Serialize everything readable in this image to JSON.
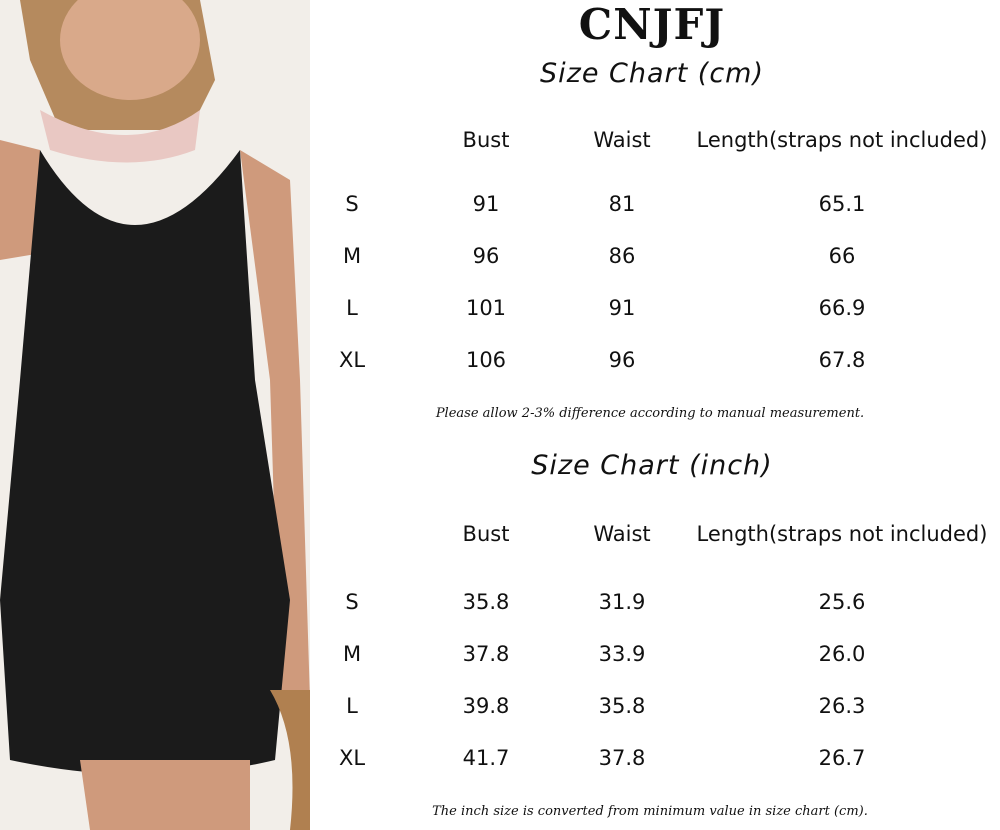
{
  "brand": "CNJFJ",
  "cm_chart": {
    "title": "Size Chart (cm)",
    "headers": [
      "",
      "Bust",
      "Waist",
      "Length(straps not included)"
    ],
    "rows": [
      [
        "S",
        "91",
        "81",
        "65.1"
      ],
      [
        "M",
        "96",
        "86",
        "66"
      ],
      [
        "L",
        "101",
        "91",
        "66.9"
      ],
      [
        "XL",
        "106",
        "96",
        "67.8"
      ]
    ],
    "note": "Please allow 2-3% difference according to manual measurement."
  },
  "inch_chart": {
    "title": "Size Chart (inch)",
    "headers": [
      "",
      "Bust",
      "Waist",
      "Length(straps not included)"
    ],
    "rows": [
      [
        "S",
        "35.8",
        "31.9",
        "25.6"
      ],
      [
        "M",
        "37.8",
        "33.9",
        "26.0"
      ],
      [
        "L",
        "39.8",
        "35.8",
        "26.3"
      ],
      [
        "XL",
        "41.7",
        "37.8",
        "26.7"
      ]
    ],
    "note": "The inch size is converted from minimum value in size chart (cm)."
  }
}
